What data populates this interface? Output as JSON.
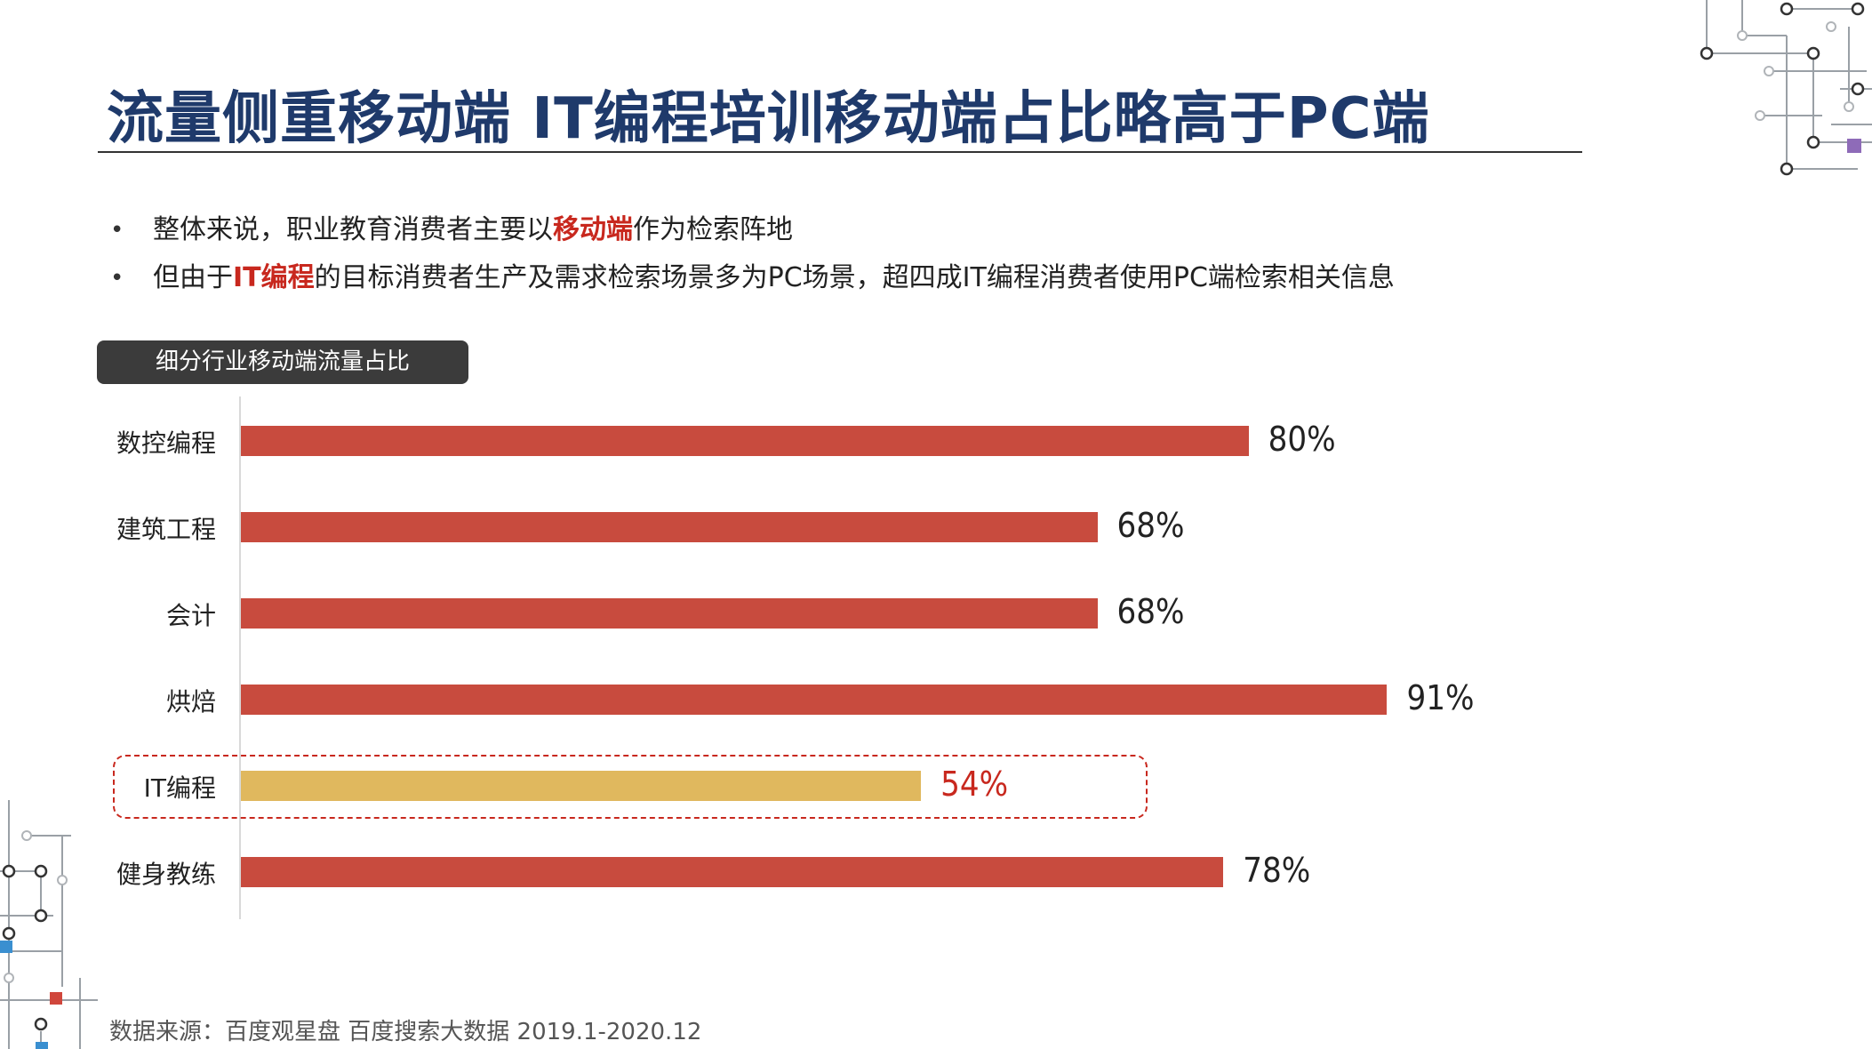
{
  "title": "流量侧重移动端  IT编程培训移动端占比略高于PC端",
  "bullets": [
    {
      "before": "整体来说，职业教育消费者主要以",
      "highlight": "移动端",
      "after": "作为检索阵地"
    },
    {
      "before": "但由于",
      "highlight": "IT编程",
      "after": "的目标消费者生产及需求检索场景多为PC场景，超四成IT编程消费者使用PC端检索相关信息"
    }
  ],
  "bullet_symbol": "•",
  "chart_data": {
    "type": "bar",
    "orientation": "horizontal",
    "title": "细分行业移动端流量占比",
    "categories": [
      "数控编程",
      "建筑工程",
      "会计",
      "烘焙",
      "IT编程",
      "健身教练"
    ],
    "values": [
      80,
      68,
      68,
      91,
      54,
      78
    ],
    "value_labels": [
      "80%",
      "68%",
      "68%",
      "91%",
      "54%",
      "78%"
    ],
    "xlim": [
      0,
      100
    ],
    "highlight_category": "IT编程",
    "grid": false,
    "legend": "none"
  },
  "colors": {
    "title": "#1f3a6b",
    "bar": "#c84b3e",
    "bar_highlight": "#e0b85e",
    "highlight_text": "#c8281e",
    "tag_bg": "#3b3b3b"
  },
  "source": "数据来源：百度观星盘 百度搜索大数据 2019.1-2020.12"
}
